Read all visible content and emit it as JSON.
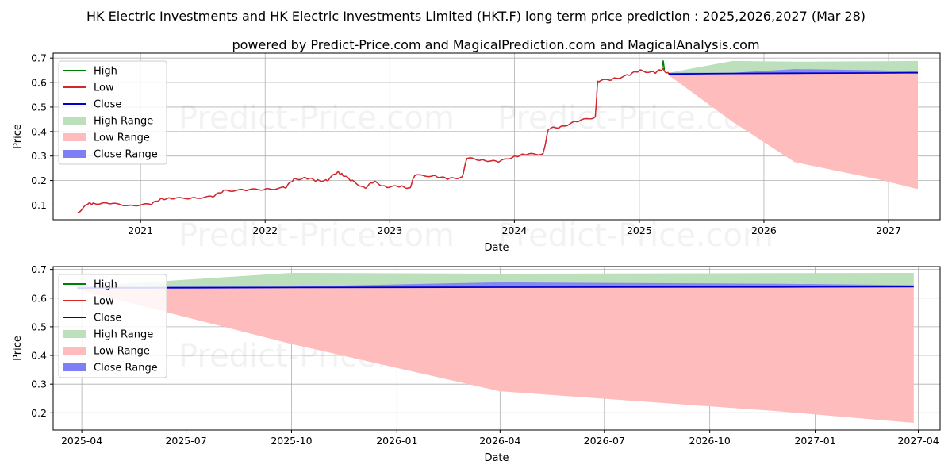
{
  "title": "HK Electric Investments and HK Electric Investments Limited (HKT.F) long term price prediction : 2025,2026,2027 (Mar 28)",
  "subtitle": "powered by Predict-Price.com and MagicalPrediction.com and MagicalAnalysis.com",
  "watermark": "Predict-Price.com",
  "colors": {
    "high": "#008000",
    "low": "#d62728",
    "close": "#0000cd",
    "high_range": "#bcdfbc",
    "low_range": "#ffbcbc",
    "close_range": "#7f7ff5",
    "grid": "#b0b0b0"
  },
  "chart_data": [
    {
      "type": "line",
      "xlabel": "Date",
      "ylabel": "Price",
      "xlim": [
        "2020-04-20",
        "2027-06-01"
      ],
      "ylim": [
        0.04,
        0.72
      ],
      "yticks": [
        0.1,
        0.2,
        0.3,
        0.4,
        0.5,
        0.6,
        0.7
      ],
      "ytick_labels": [
        "0.1",
        "0.2",
        "0.3",
        "0.4",
        "0.5",
        "0.6",
        "0.7"
      ],
      "xticks": [
        "2021-01-01",
        "2022-01-01",
        "2023-01-01",
        "2024-01-01",
        "2025-01-01",
        "2026-01-01",
        "2027-01-01"
      ],
      "xtick_labels": [
        "2021",
        "2022",
        "2023",
        "2024",
        "2025",
        "2026",
        "2027"
      ],
      "grid": true,
      "legend_position": "top-left",
      "legend": [
        "High",
        "Low",
        "Close",
        "High Range",
        "Low Range",
        "Close Range"
      ],
      "history": {
        "dates": [
          "2020-07-01",
          "2020-08-01",
          "2020-08-15",
          "2020-10-01",
          "2020-12-01",
          "2021-02-01",
          "2021-03-01",
          "2021-04-01",
          "2021-06-01",
          "2021-08-01",
          "2021-09-01",
          "2021-11-01",
          "2022-01-01",
          "2022-03-01",
          "2022-03-25",
          "2022-05-01",
          "2022-06-01",
          "2022-07-01",
          "2022-08-01",
          "2022-08-15",
          "2022-09-10",
          "2022-10-20",
          "2022-11-15",
          "2022-12-20",
          "2023-02-01",
          "2023-03-01",
          "2023-03-15",
          "2023-05-15",
          "2023-06-20",
          "2023-08-01",
          "2023-08-15",
          "2023-10-01",
          "2023-11-15",
          "2024-01-01",
          "2024-02-01",
          "2024-03-25",
          "2024-04-10",
          "2024-05-15",
          "2024-07-01",
          "2024-08-25",
          "2024-09-01",
          "2024-10-15",
          "2024-12-01",
          "2025-01-01",
          "2025-02-15",
          "2025-03-10",
          "2025-03-28"
        ],
        "close": [
          0.07,
          0.105,
          0.108,
          0.105,
          0.1,
          0.102,
          0.127,
          0.125,
          0.13,
          0.133,
          0.16,
          0.16,
          0.165,
          0.17,
          0.205,
          0.21,
          0.2,
          0.2,
          0.235,
          0.225,
          0.2,
          0.17,
          0.195,
          0.175,
          0.175,
          0.17,
          0.22,
          0.22,
          0.205,
          0.215,
          0.29,
          0.285,
          0.275,
          0.3,
          0.305,
          0.31,
          0.41,
          0.42,
          0.44,
          0.46,
          0.605,
          0.615,
          0.63,
          0.65,
          0.64,
          0.655,
          0.635
        ],
        "high_spike": {
          "date": "2025-03-12",
          "value": 0.69
        }
      },
      "forecast": {
        "dates": [
          "2025-03-28",
          "2025-10-01",
          "2026-04-01",
          "2026-12-01",
          "2027-03-28"
        ],
        "high_range_upper": [
          0.64,
          0.688,
          0.685,
          0.687,
          0.688
        ],
        "low_range_lower": [
          0.63,
          0.44,
          0.275,
          0.205,
          0.165
        ],
        "close_range_upper": [
          0.64,
          0.64,
          0.655,
          0.65,
          0.645
        ],
        "close_range_lower": [
          0.635,
          0.635,
          0.64,
          0.64,
          0.64
        ],
        "close": [
          0.635,
          0.637,
          0.638,
          0.639,
          0.64
        ]
      }
    },
    {
      "type": "line",
      "xlabel": "Date",
      "ylabel": "Price",
      "xlim": [
        "2025-03-07",
        "2027-04-20"
      ],
      "ylim": [
        0.14,
        0.71
      ],
      "yticks": [
        0.2,
        0.3,
        0.4,
        0.5,
        0.6,
        0.7
      ],
      "ytick_labels": [
        "0.2",
        "0.3",
        "0.4",
        "0.5",
        "0.6",
        "0.7"
      ],
      "xticks": [
        "2025-04-01",
        "2025-07-01",
        "2025-10-01",
        "2026-01-01",
        "2026-04-01",
        "2026-07-01",
        "2026-10-01",
        "2027-01-01",
        "2027-04-01"
      ],
      "xtick_labels": [
        "2025-04",
        "2025-07",
        "2025-10",
        "2026-01",
        "2026-04",
        "2026-07",
        "2026-10",
        "2027-01",
        "2027-04"
      ],
      "grid": true,
      "legend_position": "top-left",
      "legend": [
        "High",
        "Low",
        "Close",
        "High Range",
        "Low Range",
        "Close Range"
      ]
    }
  ]
}
